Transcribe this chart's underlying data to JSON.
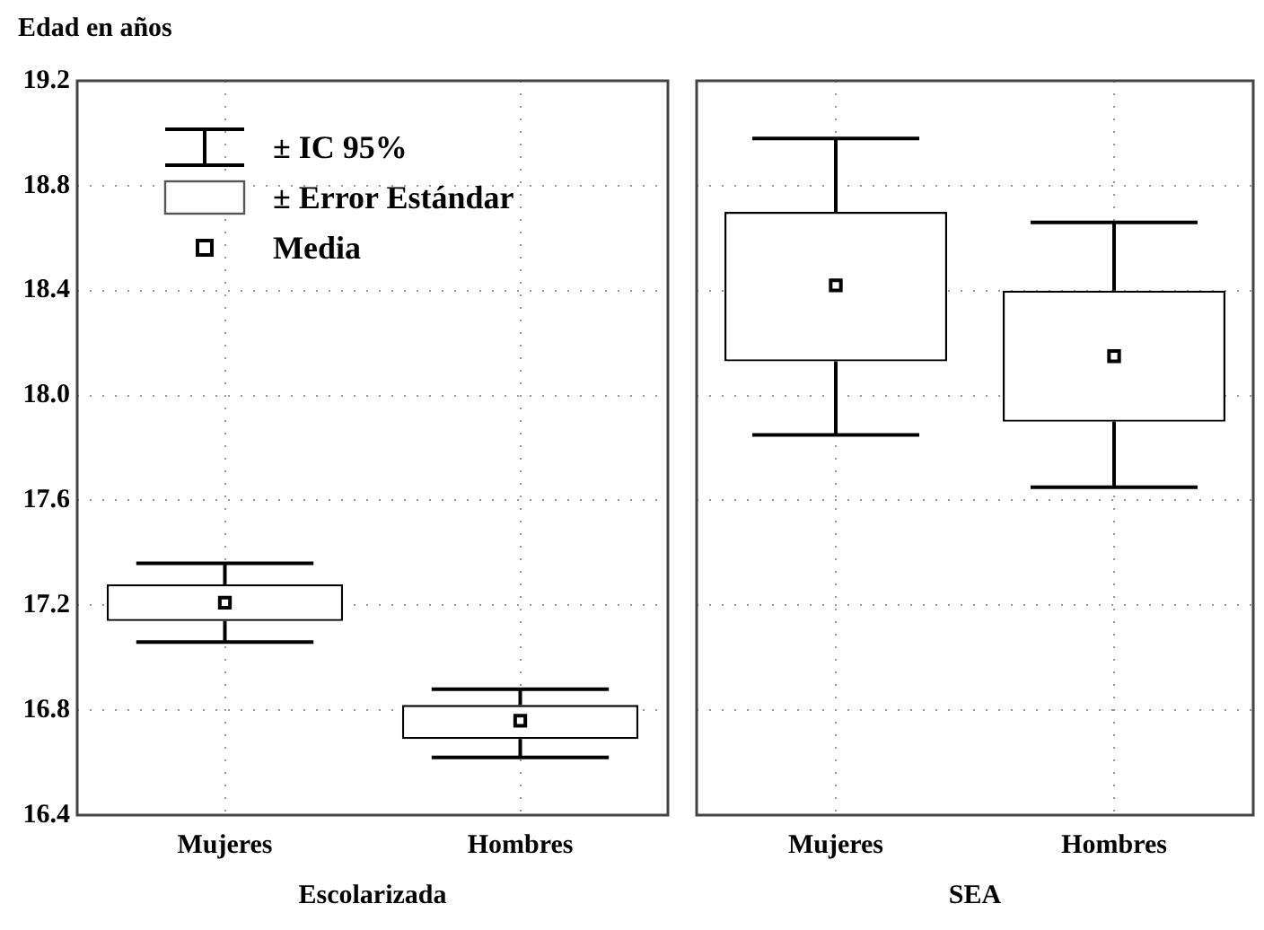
{
  "chart_data": [
    {
      "type": "box",
      "ylabel": "Edad en años",
      "xlabel": "Escolarizada",
      "categories": [
        "Mujeres",
        "Hombres"
      ],
      "ylim": [
        16.4,
        19.2
      ],
      "yticks": [
        16.4,
        16.8,
        17.2,
        17.6,
        {
          "value": 18,
          "label": "18.0"
        },
        18.4,
        18.8,
        19.2
      ],
      "grid": true,
      "color": "#000000",
      "marker": "square",
      "annotations": [
        "± IC 95%",
        "± Error Estándar",
        "Media"
      ],
      "boxes": [
        {
          "low": 17.06,
          "q1": 17.14,
          "median": 17.21,
          "q3": 17.28,
          "high": 17.36
        },
        {
          "low": 16.62,
          "q1": 16.69,
          "median": 16.76,
          "q3": 16.82,
          "high": 16.88
        }
      ]
    },
    {
      "type": "box",
      "xlabel": "SEA",
      "categories": [
        "Mujeres",
        "Hombres"
      ],
      "ylim": [
        16.4,
        19.2
      ],
      "yticks": [
        16.4,
        16.8,
        17.2,
        17.6,
        18,
        18.4,
        18.8,
        19.2
      ],
      "grid": true,
      "tick_labels": "x",
      "color": "#000000",
      "marker": "square",
      "boxes": [
        {
          "low": 17.85,
          "q1": 18.13,
          "median": 18.42,
          "q3": 18.7,
          "high": 18.98
        },
        {
          "low": 17.65,
          "q1": 17.9,
          "median": 18.15,
          "q3": 18.4,
          "high": 18.66
        }
      ]
    }
  ]
}
